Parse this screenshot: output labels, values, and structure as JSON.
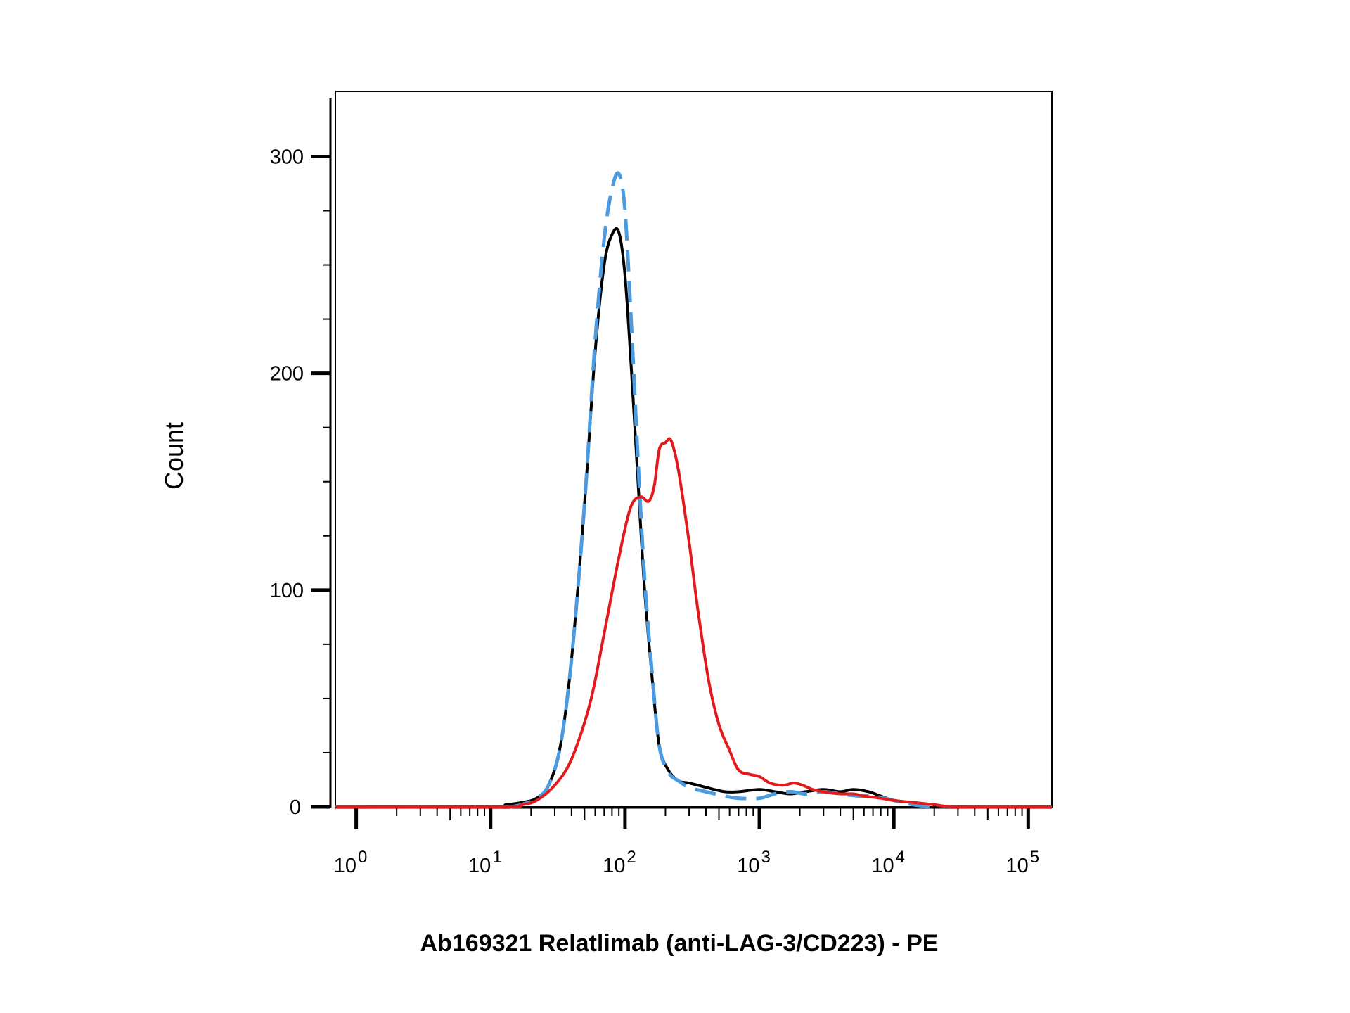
{
  "chart_data": {
    "type": "line",
    "title": "",
    "xlabel": "Ab169321 Relatlimab (anti-LAG-3/CD223) - PE",
    "ylabel": "Count",
    "x_scale": "log",
    "xlim": [
      0.7,
      150000
    ],
    "ylim": [
      0,
      330
    ],
    "grid": false,
    "legend": "none",
    "x_ticks": [
      {
        "base": "10",
        "exp": "0"
      },
      {
        "base": "10",
        "exp": "1"
      },
      {
        "base": "10",
        "exp": "2"
      },
      {
        "base": "10",
        "exp": "3"
      },
      {
        "base": "10",
        "exp": "4"
      },
      {
        "base": "10",
        "exp": "5"
      }
    ],
    "y_ticks": [
      "0",
      "100",
      "200",
      "300"
    ],
    "series": [
      {
        "color": "#000000",
        "style": "solid",
        "points": [
          [
            0.7,
            0
          ],
          [
            10,
            0
          ],
          [
            13,
            1
          ],
          [
            17,
            2
          ],
          [
            22,
            4
          ],
          [
            27,
            10
          ],
          [
            33,
            28
          ],
          [
            40,
            68
          ],
          [
            50,
            140
          ],
          [
            60,
            210
          ],
          [
            70,
            250
          ],
          [
            80,
            264
          ],
          [
            90,
            265
          ],
          [
            100,
            245
          ],
          [
            112,
            200
          ],
          [
            125,
            150
          ],
          [
            140,
            100
          ],
          [
            160,
            58
          ],
          [
            180,
            28
          ],
          [
            210,
            17
          ],
          [
            250,
            12
          ],
          [
            300,
            11
          ],
          [
            400,
            9
          ],
          [
            550,
            7
          ],
          [
            700,
            7
          ],
          [
            1000,
            8
          ],
          [
            1300,
            7
          ],
          [
            1700,
            6
          ],
          [
            2200,
            7
          ],
          [
            3000,
            8
          ],
          [
            4000,
            7
          ],
          [
            5000,
            8
          ],
          [
            6500,
            7
          ],
          [
            8000,
            5
          ],
          [
            10000,
            3
          ],
          [
            14000,
            2
          ],
          [
            20000,
            1
          ],
          [
            30000,
            0
          ],
          [
            150000,
            0
          ]
        ]
      },
      {
        "color": "#4c9be0",
        "style": "dashed",
        "points": [
          [
            14,
            0
          ],
          [
            17,
            1
          ],
          [
            22,
            4
          ],
          [
            27,
            10
          ],
          [
            33,
            28
          ],
          [
            40,
            68
          ],
          [
            50,
            140
          ],
          [
            60,
            215
          ],
          [
            70,
            262
          ],
          [
            80,
            285
          ],
          [
            90,
            292
          ],
          [
            100,
            275
          ],
          [
            112,
            220
          ],
          [
            125,
            160
          ],
          [
            140,
            105
          ],
          [
            160,
            60
          ],
          [
            180,
            28
          ],
          [
            210,
            16
          ],
          [
            250,
            12
          ],
          [
            300,
            9
          ],
          [
            400,
            7
          ],
          [
            550,
            5
          ],
          [
            700,
            4
          ],
          [
            1000,
            4
          ],
          [
            1300,
            6
          ],
          [
            1700,
            7
          ],
          [
            2200,
            6
          ],
          [
            3000,
            7
          ],
          [
            4000,
            6
          ],
          [
            5500,
            5
          ],
          [
            7000,
            5
          ],
          [
            10000,
            3
          ],
          [
            14000,
            1
          ],
          [
            20000,
            0
          ]
        ]
      },
      {
        "color": "#e31a1c",
        "style": "solid",
        "points": [
          [
            0.7,
            0
          ],
          [
            12,
            0
          ],
          [
            17,
            1
          ],
          [
            22,
            3
          ],
          [
            30,
            10
          ],
          [
            40,
            22
          ],
          [
            55,
            48
          ],
          [
            70,
            80
          ],
          [
            90,
            115
          ],
          [
            110,
            138
          ],
          [
            130,
            143
          ],
          [
            150,
            141
          ],
          [
            165,
            148
          ],
          [
            180,
            165
          ],
          [
            200,
            168
          ],
          [
            220,
            169
          ],
          [
            250,
            155
          ],
          [
            300,
            122
          ],
          [
            350,
            90
          ],
          [
            420,
            58
          ],
          [
            500,
            38
          ],
          [
            600,
            26
          ],
          [
            700,
            17
          ],
          [
            850,
            15
          ],
          [
            1000,
            14
          ],
          [
            1200,
            11
          ],
          [
            1500,
            10
          ],
          [
            1800,
            11
          ],
          [
            2100,
            10
          ],
          [
            2500,
            8
          ],
          [
            3000,
            7
          ],
          [
            4000,
            6
          ],
          [
            5000,
            6
          ],
          [
            6000,
            5
          ],
          [
            8000,
            4
          ],
          [
            10000,
            3
          ],
          [
            14000,
            2
          ],
          [
            20000,
            1
          ],
          [
            30000,
            0
          ],
          [
            150000,
            0
          ]
        ]
      }
    ]
  }
}
